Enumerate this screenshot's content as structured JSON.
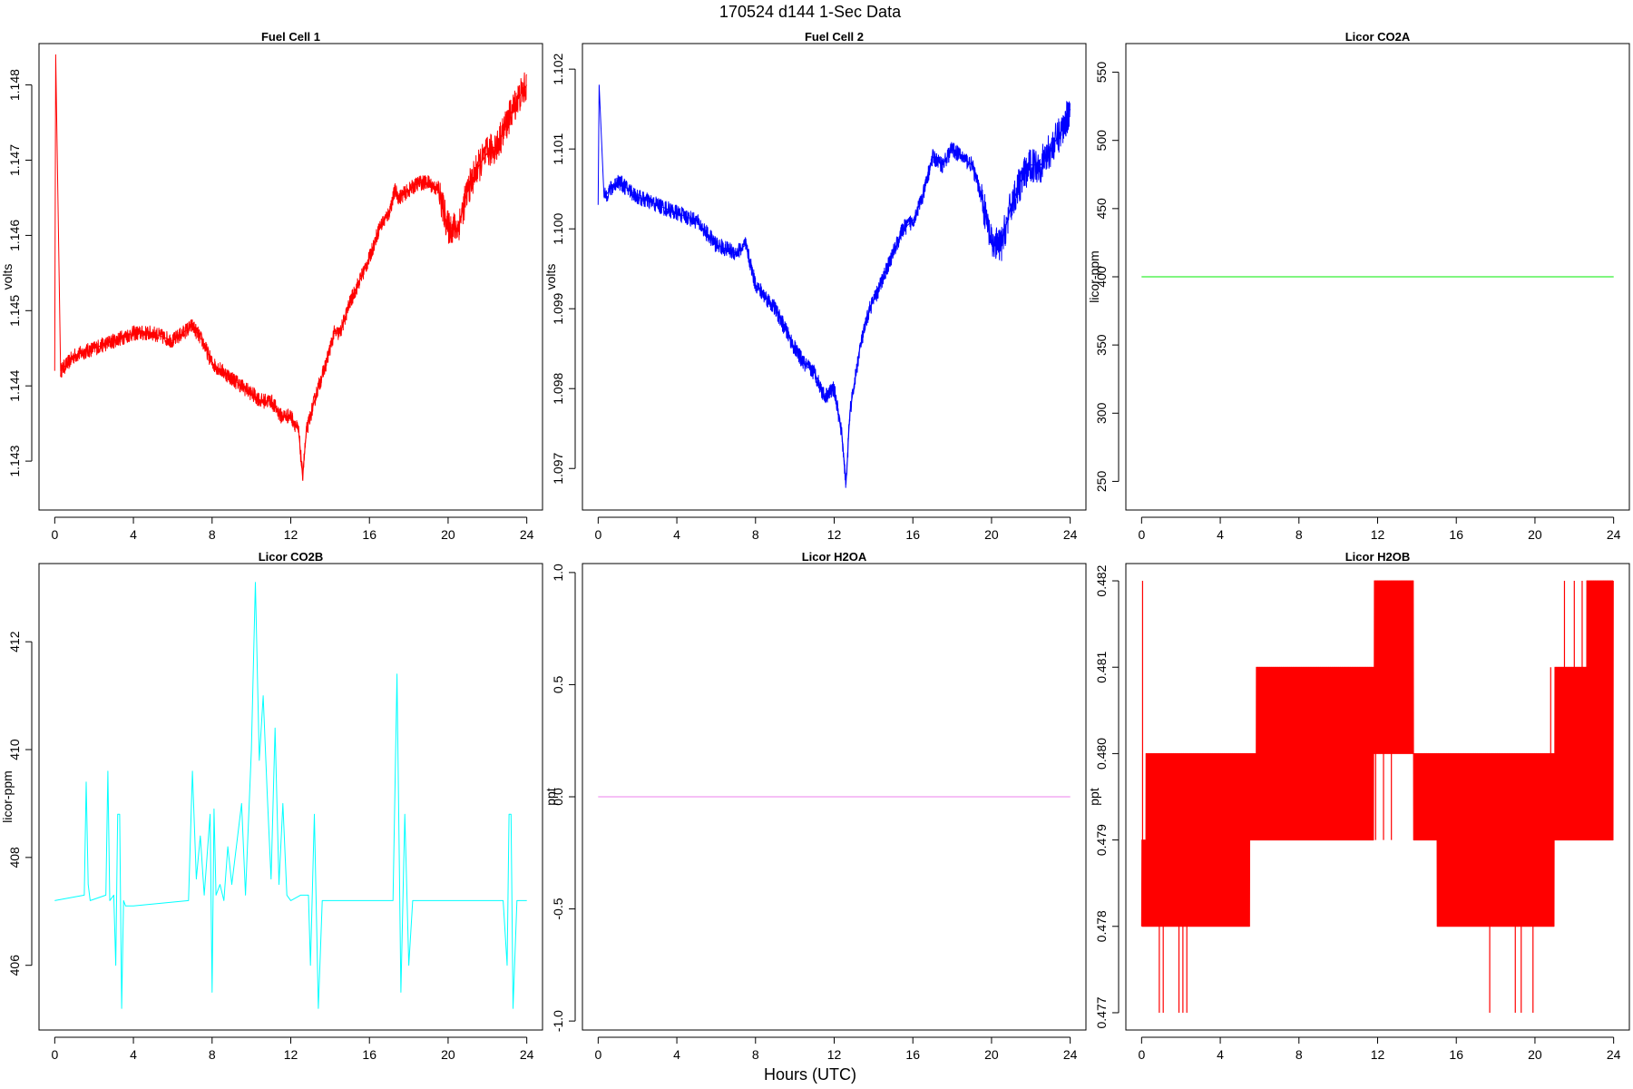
{
  "figure": {
    "title": "170524   d144   1-Sec Data",
    "xlabel": "Hours (UTC)"
  },
  "chart_data": [
    {
      "type": "line",
      "title": "Fuel Cell 1",
      "xlabel": "",
      "ylabel": "volts",
      "color": "#ff0000",
      "xlim": [
        -0.8,
        24.8
      ],
      "ylim": [
        1.14235,
        1.14855
      ],
      "xticks": [
        "0",
        "4",
        "8",
        "12",
        "16",
        "20",
        "24"
      ],
      "yticks": [
        "1.143",
        "1.144",
        "1.145",
        "1.146",
        "1.147",
        "1.148"
      ],
      "series": [
        {
          "band": 0.0001,
          "x": [
            0,
            0.05,
            0.3,
            1,
            2,
            3,
            4,
            5,
            6,
            7,
            7.5,
            8,
            9,
            10,
            10.5,
            11,
            11.5,
            12,
            12.4,
            12.6,
            12.8,
            13.3,
            13.8,
            14.2,
            14.5,
            15,
            15.5,
            16,
            16.5,
            17,
            17.3,
            17.5,
            18,
            18.5,
            19,
            19.5,
            20,
            20.5,
            21,
            21.5,
            22,
            22.5,
            23,
            23.5,
            24
          ],
          "y": [
            1.1442,
            1.1484,
            1.1442,
            1.1444,
            1.1445,
            1.1446,
            1.1447,
            1.1447,
            1.1446,
            1.1448,
            1.1446,
            1.1443,
            1.1441,
            1.1439,
            1.1438,
            1.1438,
            1.1436,
            1.1436,
            1.1434,
            1.1428,
            1.1434,
            1.1439,
            1.1443,
            1.1447,
            1.1447,
            1.1451,
            1.1454,
            1.1457,
            1.1461,
            1.1463,
            1.1466,
            1.1465,
            1.1466,
            1.1467,
            1.1467,
            1.1466,
            1.1461,
            1.1461,
            1.1466,
            1.1469,
            1.1471,
            1.1472,
            1.1475,
            1.1478,
            1.148
          ]
        }
      ]
    },
    {
      "type": "line",
      "title": "Fuel Cell 2",
      "xlabel": "",
      "ylabel": "volts",
      "color": "#0000ff",
      "xlim": [
        -0.8,
        24.8
      ],
      "ylim": [
        1.09648,
        1.10232
      ],
      "xticks": [
        "0",
        "4",
        "8",
        "12",
        "16",
        "20",
        "24"
      ],
      "yticks": [
        "1.097",
        "1.098",
        "1.099",
        "1.100",
        "1.101",
        "1.102"
      ],
      "series": [
        {
          "band": 0.0001,
          "x": [
            0,
            0.05,
            0.3,
            1,
            2,
            3,
            4,
            5,
            6,
            7,
            7.5,
            8,
            9,
            10,
            10.5,
            11,
            11.5,
            12,
            12.4,
            12.6,
            12.8,
            13.3,
            13.8,
            14.2,
            14.5,
            15,
            15.5,
            16,
            16.5,
            17,
            17.5,
            18,
            18.5,
            19,
            19.5,
            20,
            20.5,
            21,
            21.5,
            22,
            22.5,
            23,
            23.5,
            24
          ],
          "y": [
            1.1003,
            1.1018,
            1.1004,
            1.1006,
            1.1004,
            1.1003,
            1.1002,
            1.1001,
            1.0998,
            1.0997,
            1.0998,
            1.0993,
            1.099,
            1.0985,
            1.0983,
            1.0982,
            1.0979,
            1.098,
            1.0974,
            1.0968,
            1.0977,
            1.0985,
            1.099,
            1.0992,
            1.0994,
            1.0997,
            1.1,
            1.1001,
            1.1004,
            1.1009,
            1.1008,
            1.101,
            1.1009,
            1.1008,
            1.1004,
            1.0998,
            1.0998,
            1.1003,
            1.1006,
            1.1008,
            1.1008,
            1.101,
            1.1012,
            1.1015
          ]
        }
      ]
    },
    {
      "type": "line",
      "title": "Licor CO2A",
      "xlabel": "",
      "ylabel": "licor-ppm",
      "color": "#00ee00",
      "xlim": [
        -0.8,
        24.8
      ],
      "ylim": [
        229,
        571
      ],
      "xticks": [
        "0",
        "4",
        "8",
        "12",
        "16",
        "20",
        "24"
      ],
      "yticks": [
        "250",
        "300",
        "350",
        "400",
        "450",
        "500",
        "550"
      ],
      "series": [
        {
          "x": [
            0,
            24
          ],
          "y": [
            400,
            400
          ]
        }
      ]
    },
    {
      "type": "line",
      "title": "Licor CO2B",
      "xlabel": "",
      "ylabel": "licor-ppm",
      "color": "#00ffff",
      "xlim": [
        -0.8,
        24.8
      ],
      "ylim": [
        404.8,
        413.45
      ],
      "xticks": [
        "0",
        "4",
        "8",
        "12",
        "16",
        "20",
        "24"
      ],
      "yticks": [
        "406",
        "408",
        "410",
        "412"
      ],
      "series": [
        {
          "x": [
            0,
            1.5,
            1.6,
            1.7,
            1.8,
            2.6,
            2.7,
            2.8,
            3.0,
            3.1,
            3.2,
            3.3,
            3.4,
            3.5,
            3.6,
            4.0,
            6.8,
            7.0,
            7.2,
            7.4,
            7.6,
            7.9,
            8.0,
            8.1,
            8.2,
            8.4,
            8.6,
            8.8,
            9.0,
            9.5,
            9.7,
            10.0,
            10.2,
            10.4,
            10.6,
            10.8,
            11.0,
            11.2,
            11.4,
            11.6,
            11.8,
            12.0,
            12.5,
            12.9,
            13.0,
            13.2,
            13.4,
            13.6,
            13.8,
            17.2,
            17.4,
            17.6,
            17.8,
            18.0,
            18.2,
            22.8,
            23.0,
            23.1,
            23.2,
            23.3,
            23.5,
            23.7,
            24
          ],
          "y": [
            407.2,
            407.3,
            409.4,
            407.5,
            407.2,
            407.3,
            409.6,
            407.2,
            407.3,
            406.0,
            408.8,
            408.8,
            405.2,
            407.2,
            407.1,
            407.1,
            407.2,
            409.6,
            407.6,
            408.4,
            407.3,
            408.8,
            405.5,
            408.9,
            407.3,
            407.5,
            407.2,
            408.2,
            407.5,
            409.0,
            407.3,
            410.0,
            413.1,
            409.8,
            411.0,
            409.2,
            407.6,
            410.4,
            407.5,
            409.0,
            407.3,
            407.2,
            407.3,
            407.3,
            406.0,
            408.8,
            405.2,
            407.2,
            407.2,
            407.2,
            411.4,
            405.5,
            408.8,
            406.0,
            407.2,
            407.2,
            406.0,
            408.8,
            408.8,
            405.2,
            407.2,
            407.2,
            407.2
          ]
        }
      ]
    },
    {
      "type": "line",
      "title": "Licor H2OA",
      "xlabel": "",
      "ylabel": "ppt",
      "color": "#ee82ee",
      "xlim": [
        -0.8,
        24.8
      ],
      "ylim": [
        -1.04,
        1.04
      ],
      "xticks": [
        "0",
        "4",
        "8",
        "12",
        "16",
        "20",
        "24"
      ],
      "yticks": [
        "-1.0",
        "-0.5",
        "0.0",
        "0.5",
        "1.0"
      ],
      "series": [
        {
          "x": [
            0,
            24
          ],
          "y": [
            0,
            0
          ]
        }
      ]
    },
    {
      "type": "line",
      "title": "Licor H2OB",
      "xlabel": "",
      "ylabel": "ppt",
      "color": "#ff0000",
      "xlim": [
        -0.8,
        24.8
      ],
      "ylim": [
        0.4768,
        0.4822
      ],
      "xticks": [
        "0",
        "4",
        "8",
        "12",
        "16",
        "20",
        "24"
      ],
      "yticks": [
        "0.477",
        "0.478",
        "0.479",
        "0.480",
        "0.481",
        "0.482"
      ],
      "series": [
        {
          "step_band": true,
          "x": [
            0,
            0.2,
            5.5,
            5.8,
            9.0,
            11.8,
            13.8,
            15.0,
            20.0,
            21.0,
            21.6,
            22.6,
            24
          ],
          "lo": [
            0.478,
            0.478,
            0.479,
            0.479,
            0.479,
            0.48,
            0.479,
            0.478,
            0.478,
            0.479,
            0.479,
            0.479,
            0.479
          ],
          "hi": [
            0.479,
            0.48,
            0.48,
            0.481,
            0.481,
            0.482,
            0.48,
            0.48,
            0.48,
            0.481,
            0.481,
            0.482,
            0.482
          ],
          "spikes_up": [
            0.05,
            11.9,
            12.3,
            12.7,
            20.8,
            21.5,
            22.0,
            22.4,
            22.9,
            23.3,
            23.8
          ],
          "spikes_up_to": [
            0.482,
            0.482,
            0.482,
            0.482,
            0.481,
            0.482,
            0.482,
            0.482,
            0.482,
            0.482,
            0.482
          ],
          "spikes_down": [
            0.9,
            1.1,
            1.9,
            2.1,
            2.3,
            17.7,
            19.0,
            19.3,
            19.9
          ],
          "spikes_down_to": [
            0.477,
            0.477,
            0.477,
            0.477,
            0.477,
            0.477,
            0.477,
            0.477,
            0.477
          ]
        }
      ]
    }
  ]
}
